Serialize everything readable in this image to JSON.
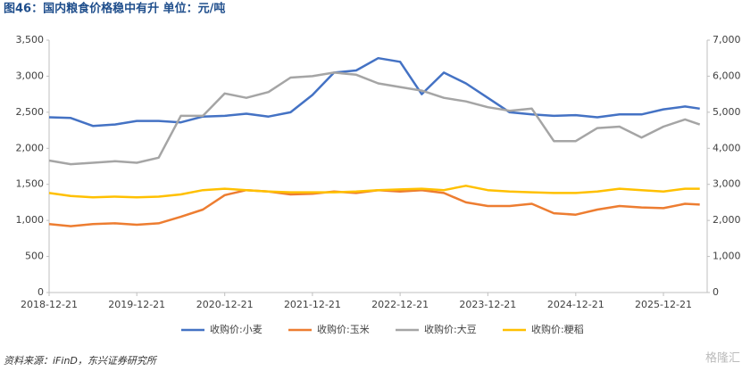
{
  "chart_data": {
    "type": "line",
    "title": "图46：国内粮食价格稳中有升  单位：元/吨",
    "source": "资料来源：iFinD，东兴证券研究所",
    "watermark": "格隆汇",
    "x": [
      "2018-12-21",
      "2019-03-21",
      "2019-06-21",
      "2019-09-21",
      "2019-12-21",
      "2020-03-21",
      "2020-06-21",
      "2020-09-21",
      "2020-12-21",
      "2021-03-21",
      "2021-06-21",
      "2021-09-21",
      "2021-12-21",
      "2022-03-21",
      "2022-06-21",
      "2022-09-21",
      "2022-12-21",
      "2023-03-21",
      "2023-06-21",
      "2023-09-21",
      "2023-12-21",
      "2024-03-21",
      "2024-06-21",
      "2024-09-21",
      "2024-12-21",
      "2025-03-21",
      "2025-06-21",
      "2025-09-21",
      "2025-12-21",
      "2026-03-21",
      "2026-05-21"
    ],
    "xlim": [
      "2018-12-21",
      "2026-06-21"
    ],
    "xticks": [
      "2018-12-21",
      "2019-12-21",
      "2020-12-21",
      "2021-12-21",
      "2022-12-21",
      "2023-12-21",
      "2024-12-21",
      "2025-12-21"
    ],
    "ylim": [
      0,
      3500
    ],
    "yticks": [
      0,
      500,
      {
        "value": 1000,
        "label": "1,000"
      },
      {
        "value": 1500,
        "label": "1,500"
      },
      {
        "value": 2000,
        "label": "2,000"
      },
      {
        "value": 2500,
        "label": "2,500"
      },
      {
        "value": 3000,
        "label": "3,000"
      },
      {
        "value": 3500,
        "label": "3,500"
      }
    ],
    "y2lim": [
      0,
      7000
    ],
    "y2ticks": [
      0,
      {
        "value": 1000,
        "label": "1,000"
      },
      {
        "value": 2000,
        "label": "2,000"
      },
      {
        "value": 3000,
        "label": "3,000"
      },
      {
        "value": 4000,
        "label": "4,000"
      },
      {
        "value": 5000,
        "label": "5,000"
      },
      {
        "value": 6000,
        "label": "6,000"
      },
      {
        "value": 7000,
        "label": "7,000"
      }
    ],
    "grid": false,
    "series": [
      {
        "name": "收购价:小麦",
        "color": "#4472c4",
        "values": [
          2430,
          2420,
          2310,
          2330,
          2380,
          2380,
          2360,
          2440,
          2450,
          2480,
          2440,
          2500,
          2740,
          3050,
          3080,
          3250,
          3200,
          2750,
          3050,
          2900,
          2700,
          2500,
          2470,
          2450,
          2460,
          2430,
          2470,
          2470,
          2540,
          2580,
          2550
        ]
      },
      {
        "name": "收购价:玉米",
        "color": "#ed7d31",
        "axis": "y2",
        "values": [
          1900,
          1840,
          1900,
          1920,
          1880,
          1920,
          2100,
          2300,
          2700,
          2840,
          2800,
          2720,
          2740,
          2800,
          2760,
          2840,
          2800,
          2840,
          2760,
          2500,
          2400,
          2400,
          2460,
          2200,
          2160,
          2300,
          2400,
          2360,
          2340,
          2460,
          2440
        ]
      },
      {
        "name": "收购价:大豆",
        "color": "#a5a5a5",
        "axis": "y2",
        "values": [
          3660,
          3560,
          3600,
          3640,
          3600,
          3740,
          4900,
          4900,
          5520,
          5400,
          5560,
          5960,
          6000,
          6100,
          6040,
          5800,
          5700,
          5600,
          5400,
          5300,
          5140,
          5040,
          5100,
          4200,
          4200,
          4560,
          4600,
          4300,
          4600,
          4800,
          4660
        ]
      },
      {
        "name": "收购价:粳稻",
        "color": "#ffc000",
        "axis": "y2",
        "values": [
          2760,
          2680,
          2640,
          2660,
          2640,
          2660,
          2720,
          2840,
          2880,
          2840,
          2800,
          2780,
          2780,
          2780,
          2800,
          2840,
          2860,
          2880,
          2840,
          2960,
          2840,
          2800,
          2780,
          2760,
          2760,
          2800,
          2880,
          2840,
          2800,
          2880,
          2880
        ]
      }
    ]
  }
}
